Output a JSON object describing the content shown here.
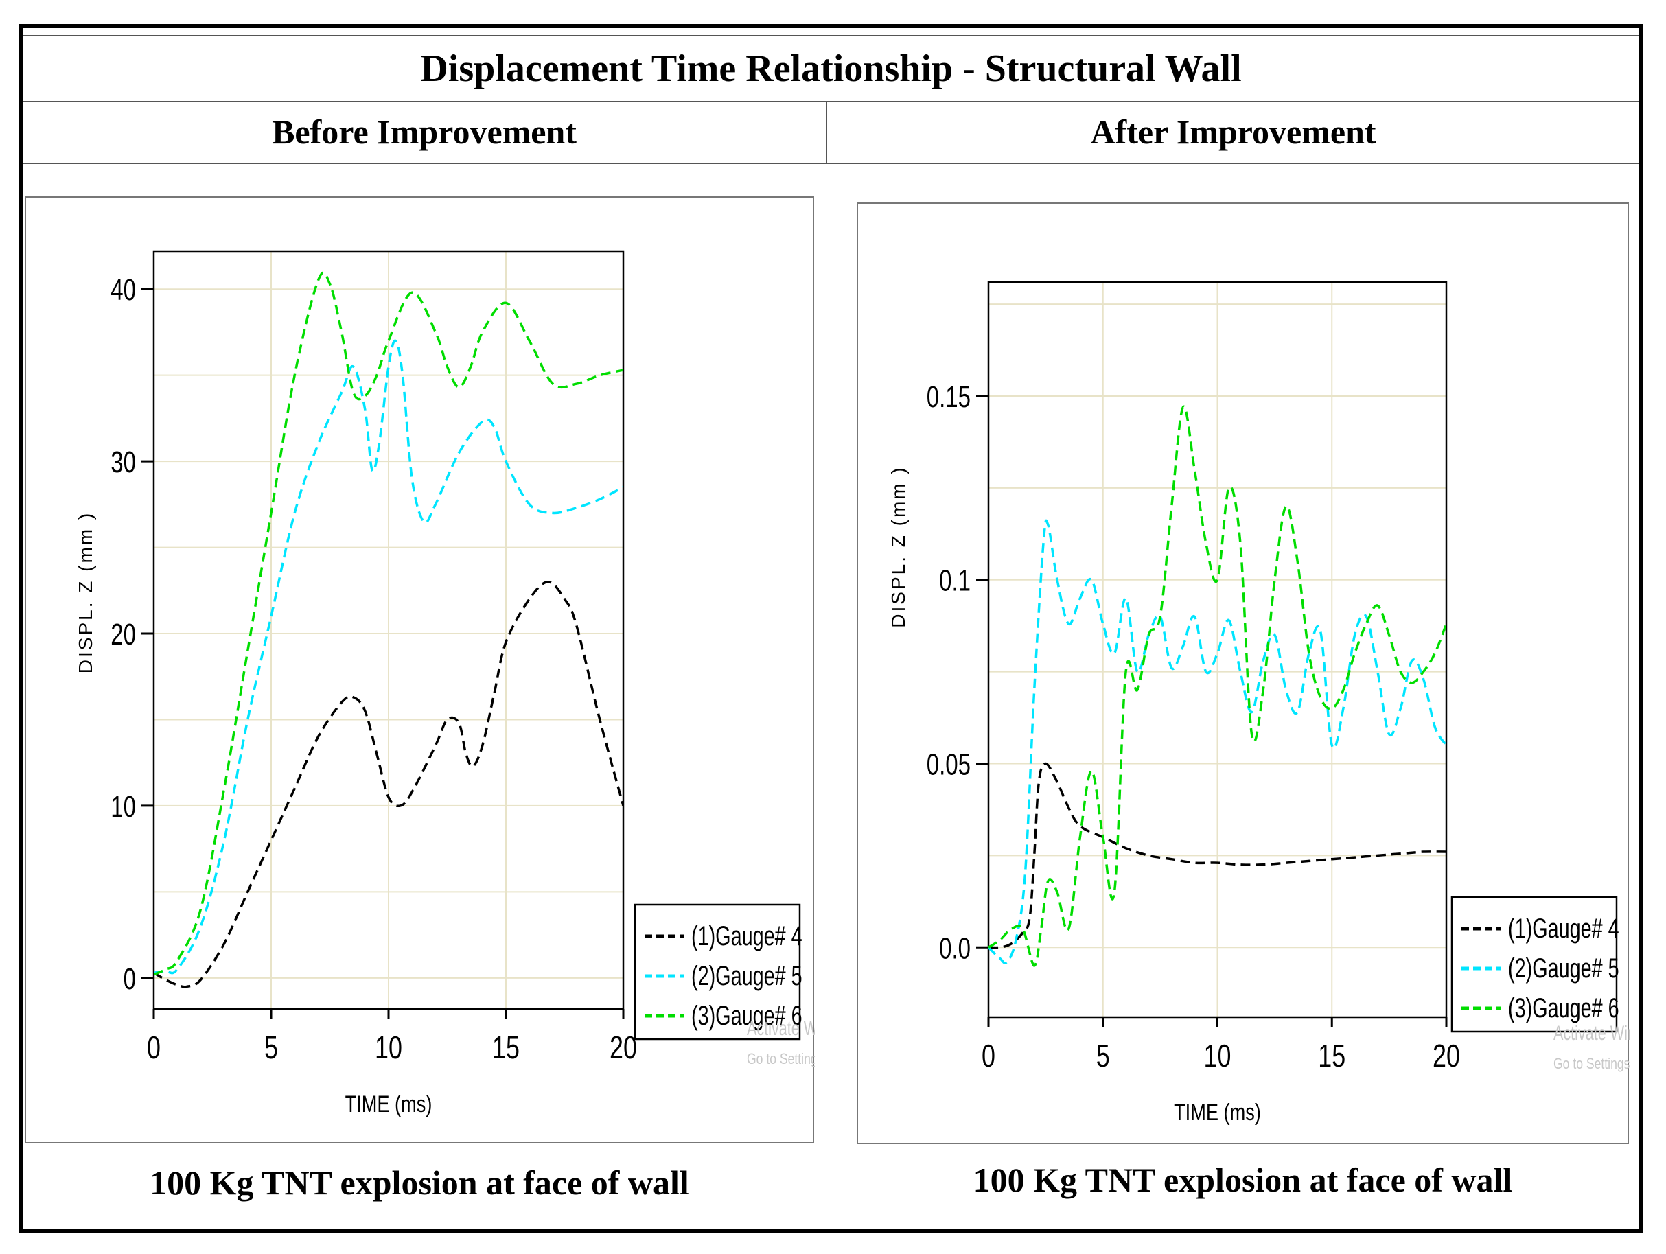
{
  "title": "Displacement Time Relationship - Structural Wall",
  "headers": {
    "left": "Before Improvement",
    "right": "After Improvement"
  },
  "captions": {
    "left": "100 Kg TNT explosion at face of wall",
    "right": "100 Kg TNT explosion at face of wall"
  },
  "watermark": {
    "line1": "Activate W",
    "line2": "Go to Settings",
    "line1_right": "Activate Win",
    "line2_right": "Go to Settings to"
  },
  "colors": {
    "gauge4": "#000000",
    "gauge5": "#00e5ff",
    "gauge6": "#00dd00",
    "grid": "#e8e3c8"
  },
  "chart_data": [
    {
      "type": "line",
      "panel": "Before Improvement",
      "xlabel": "TIME (ms)",
      "ylabel": "DISPL. Z (mm )",
      "xlim": [
        0,
        20
      ],
      "ylim": [
        -1.8,
        42.2
      ],
      "xticks": [
        0,
        5,
        10,
        15,
        20
      ],
      "yticks": [
        0,
        10,
        20,
        30,
        40
      ],
      "xtick_labels": [
        "0",
        "5",
        "10",
        "15",
        "20"
      ],
      "ytick_labels": [
        "0",
        "10",
        "20",
        "30",
        "40"
      ],
      "legend_position": "bottom-right",
      "series": [
        {
          "name": "(1)Gauge# 4",
          "color": "#000000",
          "x": [
            0,
            0.5,
            1,
            1.4,
            2,
            3,
            4,
            5,
            6,
            7,
            8,
            8.5,
            9,
            9.5,
            10,
            10.5,
            11,
            12,
            12.5,
            13,
            13.3,
            13.6,
            14,
            14.5,
            15,
            16,
            16.8,
            17.5,
            18,
            19,
            20
          ],
          "y": [
            0.3,
            -0.1,
            -0.4,
            -0.5,
            -0.1,
            2,
            5,
            8,
            11,
            14,
            16,
            16.3,
            15.5,
            13,
            10.5,
            10,
            10.8,
            13.5,
            15,
            14.8,
            13,
            12.3,
            13.5,
            16.5,
            19.5,
            22,
            23,
            22,
            20.5,
            15,
            10
          ]
        },
        {
          "name": "(2)Gauge# 5",
          "color": "#00e5ff",
          "x": [
            0,
            0.5,
            1,
            2,
            3,
            4,
            5,
            6,
            7,
            8,
            8.5,
            9,
            9.3,
            9.6,
            10,
            10.3,
            10.6,
            11,
            11.5,
            12,
            13,
            14,
            14.5,
            15,
            16,
            17,
            18,
            19,
            20
          ],
          "y": [
            0.3,
            0.4,
            0.5,
            3,
            8,
            15,
            21,
            27,
            31,
            34,
            35.5,
            33,
            29.5,
            31,
            35.5,
            37,
            35,
            29,
            26.5,
            27.5,
            30.5,
            32.3,
            32,
            30,
            27.5,
            27,
            27.3,
            27.8,
            28.5
          ]
        },
        {
          "name": "(3)Gauge# 6",
          "color": "#00dd00",
          "x": [
            0,
            0.5,
            1,
            2,
            3,
            4,
            5,
            6,
            7,
            7.5,
            8,
            8.5,
            9,
            9.5,
            10,
            11,
            12,
            12.5,
            13,
            13.5,
            14,
            15,
            16,
            17,
            18,
            19,
            20
          ],
          "y": [
            0.2,
            0.5,
            1,
            4,
            11,
            19,
            27,
            35,
            40.5,
            40.3,
            37.5,
            34,
            33.8,
            35,
            37,
            39.8,
            37.5,
            35.5,
            34.3,
            35.5,
            37.5,
            39.2,
            37,
            34.5,
            34.5,
            35,
            35.3
          ]
        }
      ]
    },
    {
      "type": "line",
      "panel": "After Improvement",
      "xlabel": "TIME (ms)",
      "ylabel": "DISPL. Z (mm )",
      "xlim": [
        0,
        20
      ],
      "ylim": [
        -0.019,
        0.181
      ],
      "xticks": [
        0,
        5,
        10,
        15,
        20
      ],
      "yticks": [
        0,
        0.05,
        0.1,
        0.15
      ],
      "xtick_labels": [
        "0",
        "5",
        "10",
        "15",
        "20"
      ],
      "ytick_labels": [
        "0.0",
        "0.05",
        "0.1",
        "0.15"
      ],
      "legend_position": "bottom-right",
      "series": [
        {
          "name": "(1)Gauge# 4",
          "color": "#000000",
          "x": [
            0,
            0.5,
            1,
            1.5,
            1.8,
            2,
            2.2,
            2.5,
            3,
            3.5,
            4,
            5,
            6,
            7,
            8,
            9,
            10,
            11,
            12,
            13,
            14,
            15,
            16,
            17,
            18,
            19,
            20
          ],
          "y": [
            0,
            0,
            0.001,
            0.004,
            0.008,
            0.025,
            0.045,
            0.05,
            0.045,
            0.038,
            0.033,
            0.03,
            0.027,
            0.025,
            0.024,
            0.023,
            0.023,
            0.0225,
            0.0225,
            0.023,
            0.0235,
            0.024,
            0.0245,
            0.025,
            0.0255,
            0.026,
            0.026
          ]
        },
        {
          "name": "(2)Gauge# 5",
          "color": "#00e5ff",
          "x": [
            0,
            0.5,
            0.8,
            1.2,
            1.6,
            2.0,
            2.4,
            2.6,
            3,
            3.5,
            4,
            4.5,
            5,
            5.5,
            6,
            6.5,
            7,
            7.5,
            8,
            8.5,
            9,
            9.5,
            10,
            10.5,
            11,
            11.5,
            12,
            12.5,
            13,
            13.5,
            14,
            14.5,
            15,
            15.5,
            16,
            16.5,
            17,
            17.5,
            18,
            18.5,
            19,
            19.5,
            20
          ],
          "y": [
            0,
            -0.003,
            -0.004,
            0.002,
            0.02,
            0.07,
            0.11,
            0.115,
            0.1,
            0.088,
            0.095,
            0.1,
            0.088,
            0.08,
            0.095,
            0.075,
            0.085,
            0.09,
            0.076,
            0.082,
            0.09,
            0.075,
            0.08,
            0.089,
            0.075,
            0.064,
            0.078,
            0.085,
            0.07,
            0.064,
            0.08,
            0.086,
            0.055,
            0.065,
            0.085,
            0.09,
            0.075,
            0.058,
            0.065,
            0.078,
            0.073,
            0.06,
            0.055
          ]
        },
        {
          "name": "(3)Gauge# 6",
          "color": "#00dd00",
          "x": [
            0,
            0.5,
            1,
            1.5,
            2,
            2.3,
            2.6,
            3,
            3.5,
            4,
            4.5,
            5,
            5.5,
            6,
            6.5,
            7,
            7.5,
            8,
            8.5,
            9,
            9.5,
            10,
            10.5,
            11,
            11.5,
            12,
            12.5,
            13,
            13.5,
            14,
            14.5,
            15,
            15.5,
            16,
            16.5,
            17,
            17.5,
            18,
            18.5,
            19,
            19.5,
            20
          ],
          "y": [
            0,
            0.002,
            0.005,
            0.005,
            -0.005,
            0.005,
            0.018,
            0.015,
            0.005,
            0.03,
            0.048,
            0.03,
            0.015,
            0.075,
            0.07,
            0.085,
            0.09,
            0.12,
            0.147,
            0.13,
            0.11,
            0.1,
            0.125,
            0.11,
            0.058,
            0.07,
            0.1,
            0.12,
            0.105,
            0.08,
            0.068,
            0.065,
            0.07,
            0.08,
            0.088,
            0.093,
            0.085,
            0.075,
            0.072,
            0.075,
            0.08,
            0.088
          ]
        }
      ]
    }
  ]
}
